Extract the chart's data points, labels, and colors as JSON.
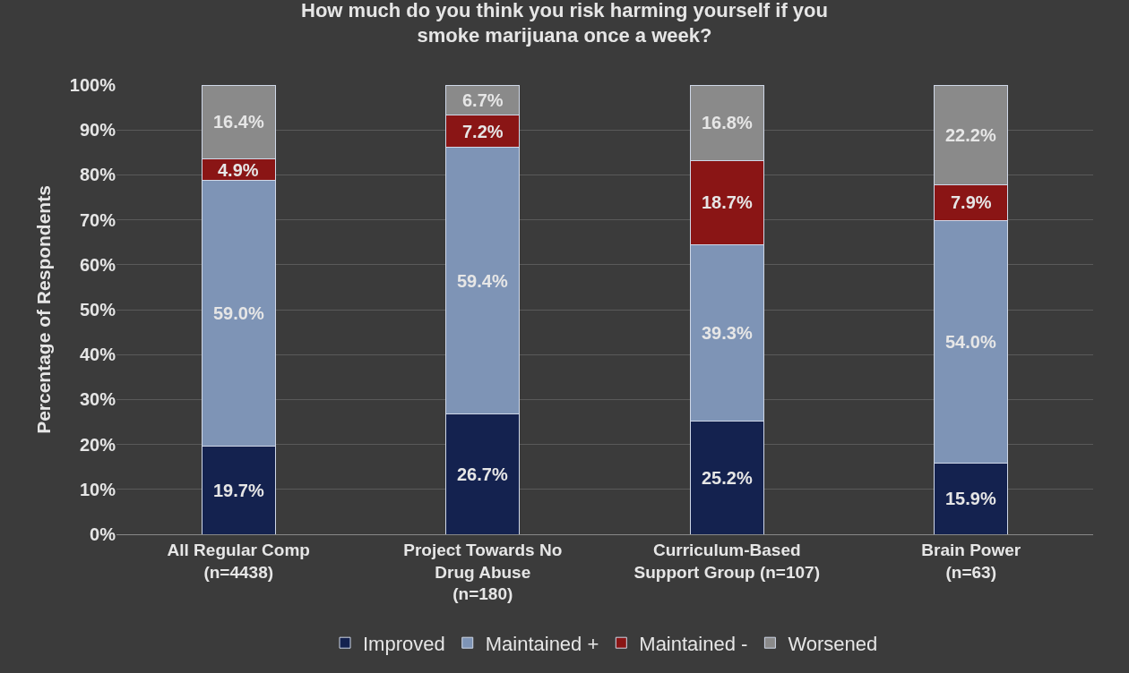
{
  "chart_data": {
    "type": "bar",
    "stacked": true,
    "title": "How much do you think you risk harming yourself if you\nsmoke marijuana once a week?",
    "ylabel": "Percentage of Respondents",
    "categories": [
      "All Regular Comp\n(n=4438)",
      "Project Towards No\nDrug Abuse\n(n=180)",
      "Curriculum-Based\nSupport Group (n=107)",
      "Brain Power\n(n=63)"
    ],
    "series": [
      {
        "name": "Improved",
        "color": "#14224f",
        "values": [
          19.7,
          26.7,
          25.2,
          15.9
        ],
        "value_labels": [
          "19.7%",
          "26.7%",
          "25.2%",
          "15.9%"
        ]
      },
      {
        "name": "Maintained +",
        "color": "#7e94b6",
        "values": [
          59.0,
          59.4,
          39.3,
          54.0
        ],
        "value_labels": [
          "59.0%",
          "59.4%",
          "39.3%",
          "54.0%"
        ]
      },
      {
        "name": "Maintained -",
        "color": "#8a1515",
        "values": [
          4.9,
          7.2,
          18.7,
          7.9
        ],
        "value_labels": [
          "4.9%",
          "7.2%",
          "18.7%",
          "7.9%"
        ]
      },
      {
        "name": "Worsened",
        "color": "#8a8a8a",
        "values": [
          16.4,
          6.7,
          16.8,
          22.2
        ],
        "value_labels": [
          "16.4%",
          "6.7%",
          "16.8%",
          "22.2%"
        ]
      }
    ],
    "ylim": [
      0,
      100
    ],
    "yticks": [
      {
        "value": 0,
        "label": "0%"
      },
      {
        "value": 10,
        "label": "10%"
      },
      {
        "value": 20,
        "label": "20%"
      },
      {
        "value": 30,
        "label": "30%"
      },
      {
        "value": 40,
        "label": "40%"
      },
      {
        "value": 50,
        "label": "50%"
      },
      {
        "value": 60,
        "label": "60%"
      },
      {
        "value": 70,
        "label": "70%"
      },
      {
        "value": 80,
        "label": "80%"
      },
      {
        "value": 90,
        "label": "90%"
      },
      {
        "value": 100,
        "label": "100%"
      }
    ],
    "grid": "y",
    "legend": "bottom"
  }
}
